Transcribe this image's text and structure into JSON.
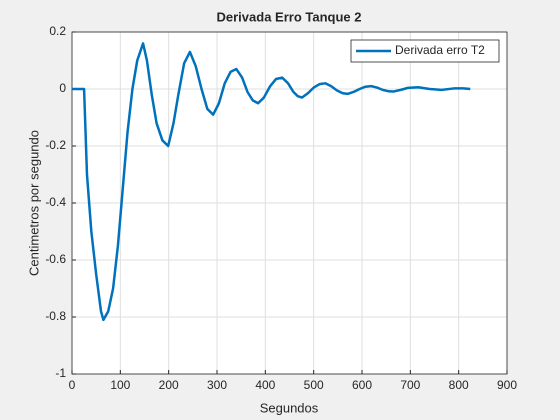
{
  "chart_data": {
    "type": "line",
    "title": "Derivada Erro Tanque 2",
    "xlabel": "Segundos",
    "ylabel": "Centimetros por segundo",
    "x": [
      0,
      25,
      31,
      40,
      50,
      60,
      65,
      75,
      85,
      95,
      105,
      115,
      125,
      135,
      147,
      155,
      165,
      175,
      187,
      199,
      210,
      220,
      232,
      244,
      256,
      268,
      280,
      292,
      304,
      316,
      328,
      340,
      352,
      363,
      374,
      385,
      397,
      410,
      422,
      435,
      447,
      458,
      467,
      476,
      488,
      500,
      512,
      524,
      536,
      548,
      560,
      571,
      583,
      595,
      607,
      619,
      631,
      643,
      655,
      665,
      680,
      695,
      716,
      740,
      765,
      790,
      810,
      824
    ],
    "series": [
      {
        "name": "Derivada erro T2",
        "color": "#0072bd",
        "values": [
          0,
          0,
          -0.3,
          -0.5,
          -0.65,
          -0.78,
          -0.81,
          -0.78,
          -0.7,
          -0.55,
          -0.35,
          -0.15,
          0.0,
          0.1,
          0.16,
          0.1,
          -0.02,
          -0.12,
          -0.18,
          -0.2,
          -0.12,
          -0.02,
          0.09,
          0.13,
          0.08,
          0.0,
          -0.07,
          -0.09,
          -0.05,
          0.02,
          0.06,
          0.07,
          0.04,
          -0.01,
          -0.04,
          -0.05,
          -0.03,
          0.01,
          0.035,
          0.04,
          0.02,
          -0.01,
          -0.025,
          -0.03,
          -0.015,
          0.005,
          0.017,
          0.02,
          0.01,
          -0.005,
          -0.015,
          -0.017,
          -0.01,
          0.0,
          0.008,
          0.01,
          0.005,
          -0.003,
          -0.008,
          -0.009,
          -0.003,
          0.004,
          0.006,
          0.0,
          -0.003,
          0.002,
          0.002,
          0.0
        ]
      }
    ],
    "xlim": [
      0,
      900
    ],
    "xticks": [
      0,
      100,
      200,
      300,
      400,
      500,
      600,
      700,
      800,
      900
    ],
    "ylim": [
      -1,
      0.2
    ],
    "yticks": [
      -1,
      -0.8,
      -0.6,
      -0.4,
      -0.2,
      0,
      0.2
    ],
    "grid": true,
    "legend": "upper-right"
  }
}
